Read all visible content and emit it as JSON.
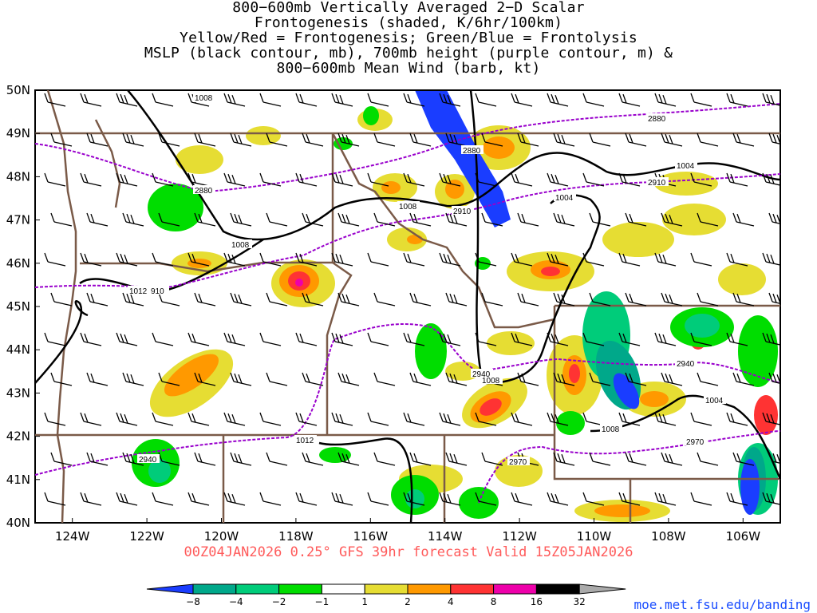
{
  "title": {
    "lines": [
      "800−600mb Vertically Averaged 2−D Scalar",
      "Frontogenesis (shaded, K/6hr/100km)",
      "Yellow/Red = Frontogenesis;  Green/Blue = Frontolysis",
      "MSLP (black contour, mb), 700mb height (purple contour, m) &",
      "800−600mb Mean Wind (barb, kt)"
    ]
  },
  "map": {
    "lat_labels": [
      "50N",
      "49N",
      "48N",
      "47N",
      "46N",
      "45N",
      "44N",
      "43N",
      "42N",
      "41N",
      "40N"
    ],
    "lon_labels": [
      "124W",
      "122W",
      "120W",
      "118W",
      "116W",
      "114W",
      "112W",
      "110W",
      "108W",
      "106W"
    ],
    "lat_range": [
      40,
      50
    ],
    "lon_range": [
      -125,
      -105
    ],
    "mslp_labels": [
      "1008",
      "1008",
      "1008",
      "1012",
      "1004",
      "1004",
      "1008",
      "1004",
      "1008",
      "1012",
      "1008"
    ],
    "height_labels": [
      "2880",
      "2880",
      "2880",
      "2910",
      "2910",
      "910",
      "2940",
      "2940",
      "2970",
      "2970",
      "2940"
    ],
    "colors": {
      "mslp": "#000000",
      "height": "#9900cc",
      "borders": "#7a5a48",
      "barbs": "#000000"
    }
  },
  "footer": "00Z04JAN2026 0.25° GFS 39hr forecast Valid 15Z05JAN2026",
  "colorbar": {
    "labels": [
      "−8",
      "−4",
      "−2",
      "−1",
      "1",
      "2",
      "4",
      "8",
      "16",
      "32"
    ],
    "colors": [
      "#1a3dff",
      "#00a88a",
      "#00cc7a",
      "#00dd00",
      "#ffffff",
      "#e6dd33",
      "#ff9900",
      "#ff3333",
      "#ee00aa",
      "#000000",
      "#aaaaaa"
    ]
  },
  "credit": "moe.met.fsu.edu/banding"
}
